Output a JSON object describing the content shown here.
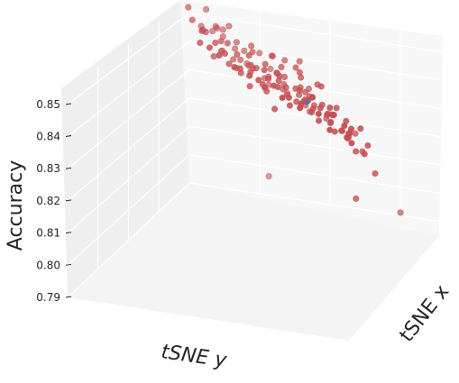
{
  "chart_data": {
    "type": "scatter",
    "title": "",
    "xlabel": "tSNE y",
    "ylabel": "tSNE x",
    "zlabel": "Accuracy",
    "z_ticks": [
      "0.79",
      "0.80",
      "0.81",
      "0.82",
      "0.83",
      "0.84",
      "0.85"
    ],
    "zlim": [
      0.79,
      0.855
    ],
    "grid": true,
    "colors": {
      "points": "#c44e52",
      "highlight": "#4c72b0",
      "pane": "#f0f0f0"
    },
    "points": [
      [
        0.09,
        0.93,
        0.8549
      ],
      [
        0.13,
        0.89,
        0.8492
      ],
      [
        0.18,
        0.86,
        0.8514
      ],
      [
        0.21,
        0.84,
        0.8537
      ],
      [
        0.18,
        0.8,
        0.8544
      ],
      [
        0.12,
        0.82,
        0.853
      ],
      [
        0.25,
        0.81,
        0.8497
      ],
      [
        0.29,
        0.78,
        0.8483
      ],
      [
        0.34,
        0.79,
        0.8479
      ],
      [
        0.4,
        0.76,
        0.8487
      ],
      [
        0.46,
        0.72,
        0.8494
      ],
      [
        0.53,
        0.68,
        0.8513
      ],
      [
        0.35,
        0.7,
        0.8533
      ],
      [
        0.44,
        0.66,
        0.8525
      ],
      [
        0.5,
        0.6,
        0.8514
      ],
      [
        0.56,
        0.58,
        0.8527
      ],
      [
        0.6,
        0.52,
        0.8535
      ],
      [
        0.68,
        0.48,
        0.8518
      ],
      [
        0.63,
        0.46,
        0.854
      ],
      [
        0.72,
        0.42,
        0.8535
      ],
      [
        0.74,
        0.3,
        0.8538
      ],
      [
        0.82,
        0.26,
        0.8527
      ],
      [
        0.86,
        0.2,
        0.8527
      ],
      [
        0.88,
        0.12,
        0.8505
      ],
      [
        0.94,
        0.1,
        0.8532
      ],
      [
        0.98,
        0.05,
        0.8528
      ],
      [
        0.93,
        0.18,
        0.8498
      ],
      [
        0.8,
        0.36,
        0.8494
      ],
      [
        0.66,
        0.38,
        0.8526
      ],
      [
        0.58,
        0.4,
        0.8555
      ],
      [
        0.5,
        0.46,
        0.8546
      ],
      [
        0.42,
        0.52,
        0.8565
      ],
      [
        0.36,
        0.56,
        0.8548
      ],
      [
        0.3,
        0.62,
        0.8559
      ],
      [
        0.26,
        0.66,
        0.8548
      ],
      [
        0.22,
        0.72,
        0.8568
      ],
      [
        0.16,
        0.74,
        0.8548
      ],
      [
        0.38,
        0.64,
        0.8535
      ],
      [
        0.46,
        0.56,
        0.853
      ],
      [
        0.52,
        0.52,
        0.852
      ],
      [
        0.62,
        0.44,
        0.8508
      ],
      [
        0.7,
        0.36,
        0.8505
      ],
      [
        0.76,
        0.32,
        0.85
      ],
      [
        0.84,
        0.22,
        0.8495
      ],
      [
        0.4,
        0.6,
        0.8495
      ],
      [
        0.48,
        0.54,
        0.849
      ],
      [
        0.56,
        0.5,
        0.8485
      ],
      [
        0.64,
        0.4,
        0.848
      ],
      [
        0.72,
        0.34,
        0.8475
      ],
      [
        0.32,
        0.68,
        0.8488
      ],
      [
        0.2,
        0.8,
        0.8462
      ],
      [
        0.26,
        0.76,
        0.8455
      ],
      [
        0.34,
        0.72,
        0.846
      ],
      [
        0.42,
        0.68,
        0.8445
      ],
      [
        0.5,
        0.62,
        0.845
      ],
      [
        0.58,
        0.56,
        0.8445
      ],
      [
        0.66,
        0.5,
        0.844
      ],
      [
        0.74,
        0.42,
        0.8445
      ],
      [
        0.82,
        0.3,
        0.8438
      ],
      [
        0.9,
        0.22,
        0.8452
      ],
      [
        0.6,
        0.6,
        0.843
      ],
      [
        0.48,
        0.66,
        0.8418
      ],
      [
        0.38,
        0.74,
        0.8415
      ],
      [
        0.28,
        0.84,
        0.8411
      ],
      [
        0.7,
        0.52,
        0.8412
      ],
      [
        0.8,
        0.4,
        0.8408
      ],
      [
        0.22,
        0.88,
        0.838
      ],
      [
        0.46,
        0.74,
        0.837
      ],
      [
        0.56,
        0.66,
        0.8375
      ],
      [
        0.66,
        0.6,
        0.8365
      ],
      [
        0.76,
        0.5,
        0.837
      ],
      [
        0.86,
        0.38,
        0.8355
      ],
      [
        0.36,
        0.82,
        0.8363
      ],
      [
        0.54,
        0.74,
        0.8325
      ],
      [
        0.64,
        0.68,
        0.832
      ],
      [
        0.74,
        0.6,
        0.8315
      ],
      [
        0.84,
        0.48,
        0.832
      ],
      [
        0.6,
        0.78,
        0.831
      ],
      [
        0.88,
        0.7,
        0.8045
      ],
      [
        0.8,
        0.52,
        0.8145
      ],
      [
        0.3,
        0.96,
        0.7985
      ],
      [
        0.92,
        0.4,
        0.8285
      ],
      [
        0.16,
        0.9,
        0.8425
      ],
      [
        0.4,
        0.88,
        0.832
      ],
      [
        0.7,
        0.4,
        0.8466
      ],
      [
        0.5,
        0.48,
        0.847
      ],
      [
        0.62,
        0.52,
        0.8472
      ],
      [
        0.58,
        0.36,
        0.846
      ],
      [
        0.44,
        0.48,
        0.8478
      ],
      [
        0.52,
        0.4,
        0.852
      ],
      [
        0.66,
        0.3,
        0.85
      ],
      [
        0.78,
        0.26,
        0.848
      ],
      [
        0.44,
        0.4,
        0.856
      ],
      [
        0.36,
        0.46,
        0.858
      ],
      [
        0.3,
        0.52,
        0.859
      ],
      [
        0.24,
        0.58,
        0.86
      ],
      [
        0.54,
        0.32,
        0.856
      ],
      [
        0.62,
        0.26,
        0.857
      ],
      [
        0.7,
        0.2,
        0.856
      ],
      [
        0.76,
        0.16,
        0.856
      ],
      [
        0.84,
        0.12,
        0.855
      ],
      [
        0.2,
        0.64,
        0.858
      ],
      [
        0.14,
        0.7,
        0.859
      ],
      [
        0.1,
        0.76,
        0.861
      ],
      [
        0.28,
        0.44,
        0.861
      ],
      [
        0.34,
        0.38,
        0.862
      ],
      [
        0.4,
        0.32,
        0.862
      ],
      [
        0.48,
        0.26,
        0.861
      ],
      [
        0.56,
        0.2,
        0.861
      ],
      [
        0.64,
        0.14,
        0.86
      ],
      [
        0.72,
        0.1,
        0.859
      ],
      [
        0.8,
        0.06,
        0.858
      ],
      [
        0.46,
        0.44,
        0.854
      ],
      [
        0.56,
        0.44,
        0.8525
      ],
      [
        0.34,
        0.54,
        0.852
      ],
      [
        0.26,
        0.6,
        0.8515
      ],
      [
        0.42,
        0.58,
        0.8505
      ],
      [
        0.52,
        0.58,
        0.849
      ],
      [
        0.62,
        0.48,
        0.85
      ],
      [
        0.68,
        0.44,
        0.8488
      ],
      [
        0.74,
        0.38,
        0.849
      ],
      [
        0.86,
        0.3,
        0.8478
      ],
      [
        0.92,
        0.28,
        0.8468
      ],
      [
        0.58,
        0.64,
        0.844
      ],
      [
        0.44,
        0.7,
        0.8455
      ],
      [
        0.3,
        0.78,
        0.844
      ],
      [
        0.7,
        0.56,
        0.8395
      ],
      [
        0.8,
        0.46,
        0.838
      ],
      [
        0.34,
        0.88,
        0.8395
      ],
      [
        0.78,
        0.56,
        0.8345
      ],
      [
        0.5,
        0.8,
        0.834
      ],
      [
        0.24,
        0.82,
        0.847
      ],
      [
        0.18,
        0.86,
        0.849
      ],
      [
        0.88,
        0.26,
        0.844
      ],
      [
        0.94,
        0.16,
        0.846
      ],
      [
        0.96,
        0.22,
        0.841
      ],
      [
        0.92,
        0.34,
        0.8395
      ],
      [
        0.72,
        0.28,
        0.853
      ],
      [
        0.6,
        0.34,
        0.854
      ],
      [
        0.4,
        0.5,
        0.851
      ]
    ],
    "highlight_point": [
      0.72,
      0.3,
      0.852
    ]
  }
}
